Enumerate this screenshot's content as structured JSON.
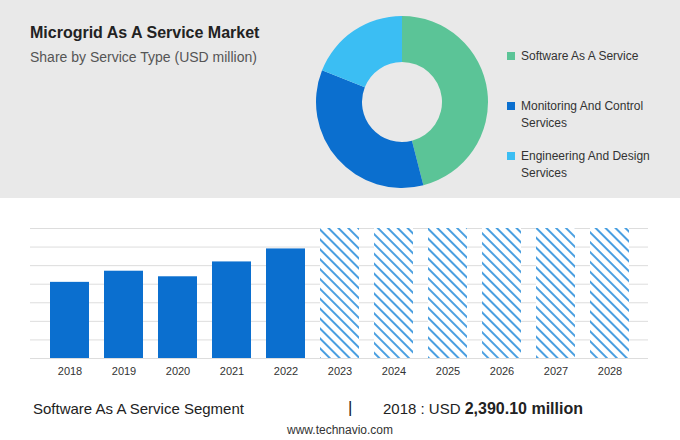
{
  "chart_data": [
    {
      "type": "donut",
      "title": "Microgrid As A Service Market",
      "subtitle": "Share by Service Type (USD million)",
      "categories": [
        "Software As A Service",
        "Monitoring And Control Services",
        "Engineering And Design Services"
      ],
      "values": [
        46,
        35,
        19
      ],
      "colors": [
        "#5bc497",
        "#0b6fcf",
        "#3bbef3"
      ],
      "legend": "right"
    },
    {
      "type": "bar",
      "categories": [
        "2018",
        "2019",
        "2020",
        "2021",
        "2022",
        "2023",
        "2024",
        "2025",
        "2026",
        "2027",
        "2028"
      ],
      "values": [
        4.1,
        4.7,
        4.4,
        5.2,
        5.9,
        7,
        7,
        7,
        7,
        7,
        7
      ],
      "color": "#0b6fcf",
      "colors": [
        "#0b6fcf",
        "#0b6fcf",
        "#0b6fcf",
        "#0b6fcf",
        "#0b6fcf",
        "#4a9fe0",
        "#4a9fe0",
        "#4a9fe0",
        "#4a9fe0",
        "#4a9fe0",
        "#4a9fe0"
      ],
      "ylim": [
        0,
        7
      ],
      "yticks": [
        0,
        1,
        2,
        3,
        4,
        5,
        6,
        7
      ],
      "grid": true,
      "tick_labels": "x"
    }
  ],
  "footer": {
    "segment": "Software As A Service Segment",
    "separator": "|",
    "year_label": "2018 : USD",
    "value": "2,390.10 million"
  },
  "source": "www.technavio.com"
}
